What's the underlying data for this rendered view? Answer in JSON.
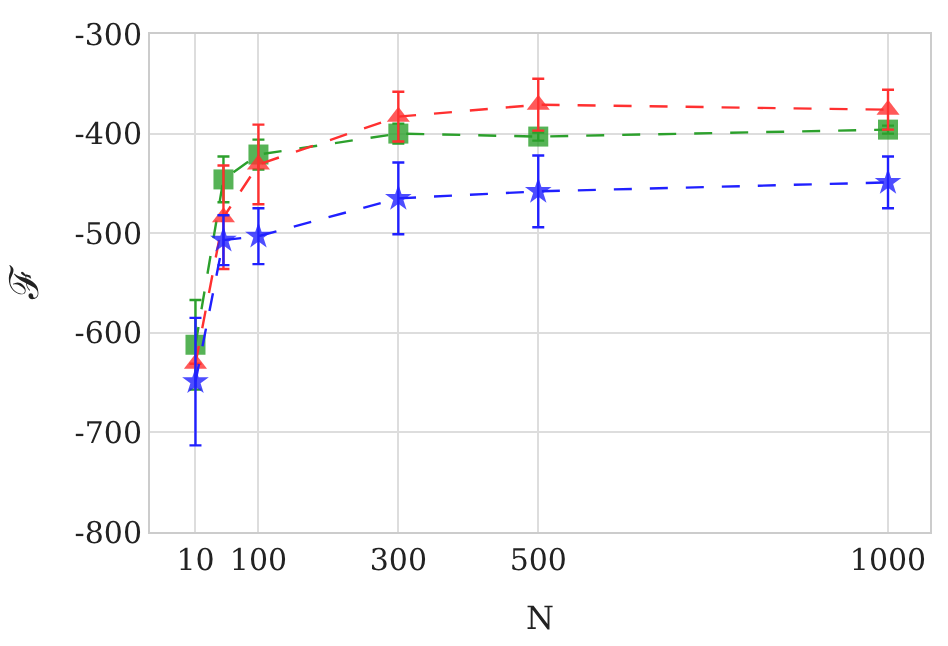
{
  "chart_data": {
    "type": "line",
    "xlabel": "N",
    "ylabel": "ℱ",
    "x": [
      10,
      50,
      100,
      300,
      500,
      1000
    ],
    "xlim": [
      -55,
      1060
    ],
    "xticks": [
      10,
      100,
      300,
      500,
      1000
    ],
    "ylim": [
      -800,
      -300
    ],
    "yticks": [
      -800,
      -700,
      -600,
      -500,
      -400,
      -300
    ],
    "grid": true,
    "line_style": "dashed",
    "series": [
      {
        "color": "#2ca02c",
        "marker": "square",
        "values": [
          -612,
          -446,
          -421,
          -400,
          -403,
          -396
        ],
        "errors": [
          45,
          23,
          15,
          10,
          4,
          4
        ]
      },
      {
        "color": "#ff3030",
        "marker": "triangle",
        "values": [
          -631,
          -484,
          -431,
          -383,
          -371,
          -376
        ],
        "errors": [
          null,
          52,
          40,
          25,
          26,
          20
        ]
      },
      {
        "color": "#2020ff",
        "marker": "star",
        "values": [
          -649,
          -507,
          -503,
          -465,
          -458,
          -449
        ],
        "errors": [
          64,
          25,
          28,
          36,
          36,
          26
        ]
      }
    ]
  }
}
